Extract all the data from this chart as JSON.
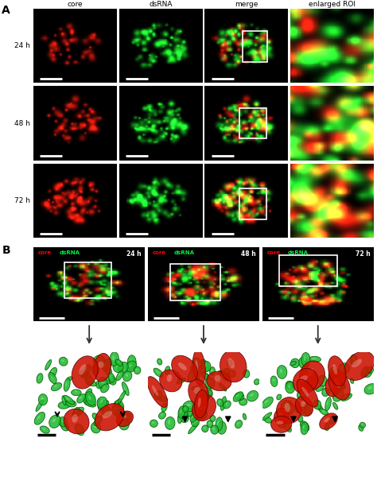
{
  "panel_A_cols": [
    "core",
    "dsRNA",
    "merge",
    "enlarged ROI"
  ],
  "panel_A_rows": [
    "24 h",
    "48 h",
    "72 h"
  ],
  "panel_B_times": [
    "24 h",
    "48 h",
    "72 h"
  ],
  "section_labels": [
    "A",
    "B"
  ],
  "fig_bg": "#ffffff",
  "img_bg": "#050505",
  "red_spot_color": [
    0.85,
    0.1,
    0.05
  ],
  "green_spot_color": [
    0.1,
    0.8,
    0.15
  ],
  "scatter_green_face": "#22bb33",
  "scatter_green_edge": "#005500",
  "scatter_red_face": "#cc1100",
  "scatter_red_edge": "#550000",
  "scale_bar_color": "#ffffff",
  "arrow_color": "#333333",
  "panel_A_n_red_spots": [
    35,
    50,
    70
  ],
  "panel_A_n_green_spots": [
    80,
    90,
    75
  ],
  "panel_B_n_red_spots": [
    30,
    50,
    70
  ],
  "panel_B_n_green_spots": [
    90,
    90,
    80
  ],
  "scatter_n_green": [
    70,
    60,
    50
  ],
  "scatter_n_red": [
    5,
    9,
    12
  ],
  "scatter_seeds": [
    20,
    25,
    30
  ]
}
